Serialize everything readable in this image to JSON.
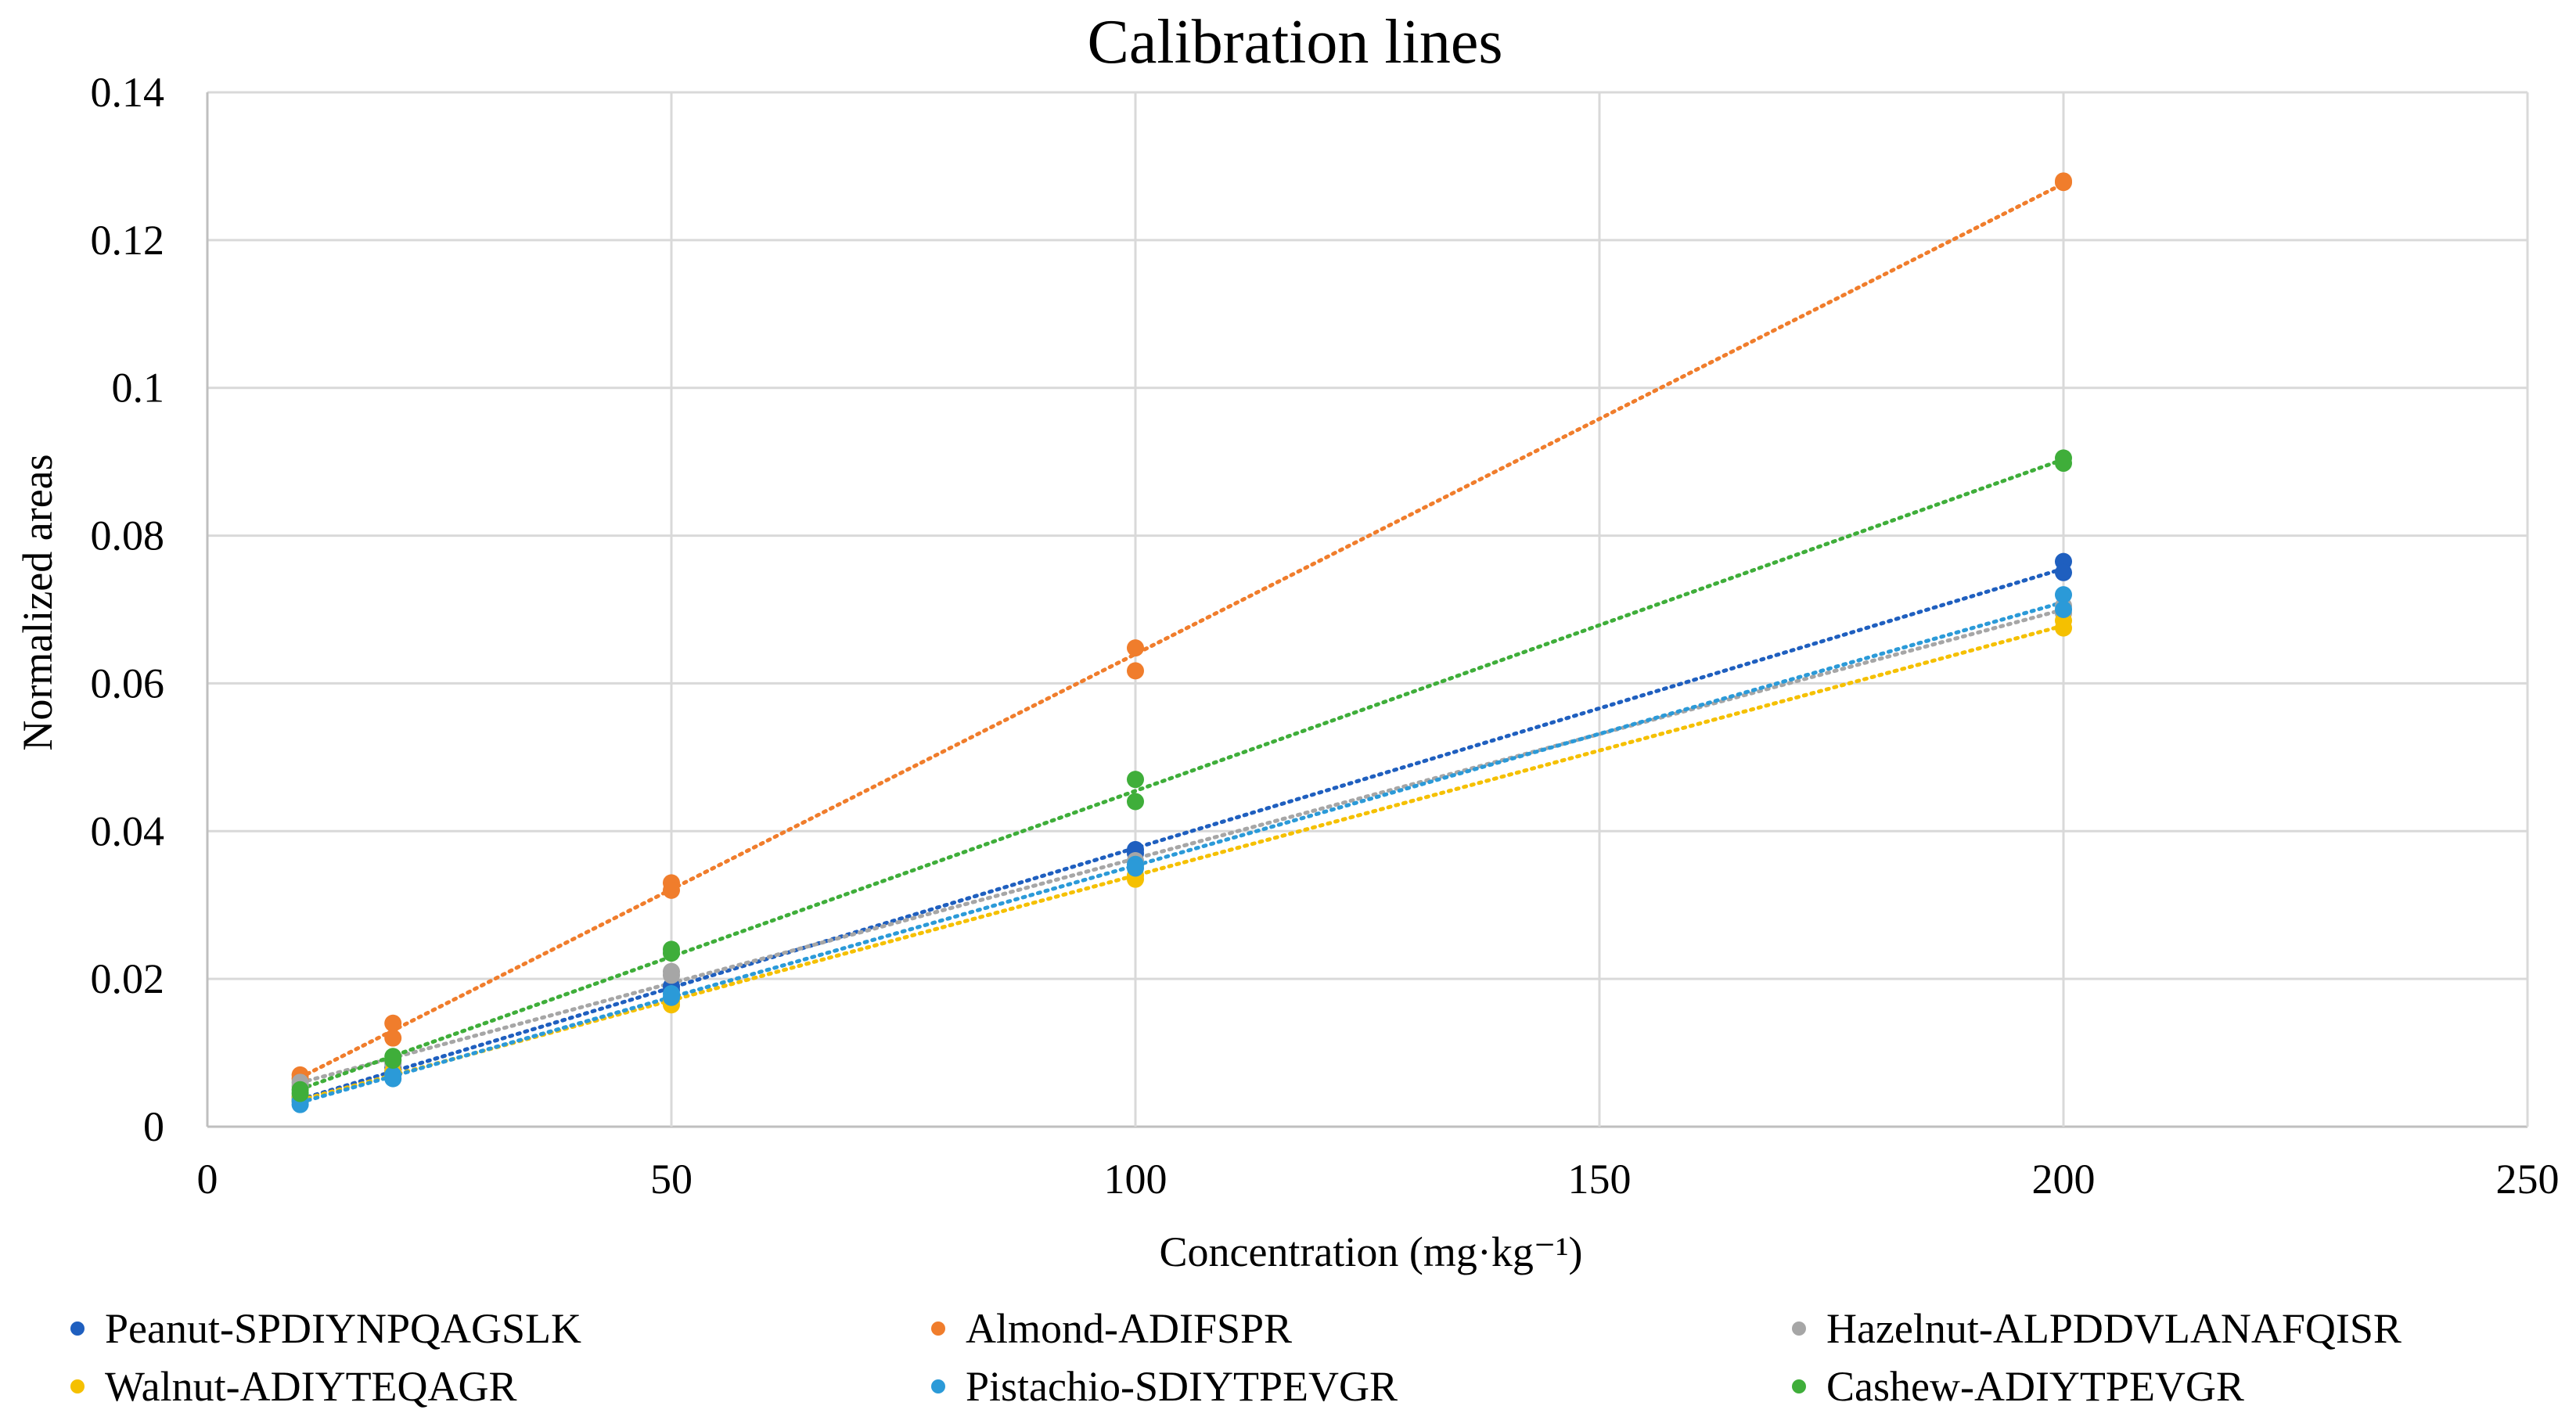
{
  "chart_data": {
    "type": "scatter",
    "title": "Calibration lines",
    "xlabel": "Concentration (mg·kg⁻¹)",
    "ylabel": "Normalized areas",
    "xlim": [
      0,
      250
    ],
    "ylim": [
      0,
      0.14
    ],
    "xticks": [
      0,
      50,
      100,
      150,
      200,
      250
    ],
    "xtick_labels": [
      "0",
      "50",
      "100",
      "150",
      "200",
      "250"
    ],
    "yticks": [
      0,
      0.02,
      0.04,
      0.06,
      0.08,
      0.1,
      0.12,
      0.14
    ],
    "ytick_labels": [
      "0",
      "0.02",
      "0.04",
      "0.06",
      "0.08",
      "0.1",
      "0.12",
      "0.14"
    ],
    "grid": true,
    "legend_position": "bottom",
    "trendline": "linear, dotted",
    "series": [
      {
        "name": "Peanut-SPDIYNPQAGSLK",
        "color": "#1f5fbf",
        "points": [
          [
            10,
            0.0035
          ],
          [
            10,
            0.004
          ],
          [
            20,
            0.0075
          ],
          [
            20,
            0.008
          ],
          [
            50,
            0.019
          ],
          [
            50,
            0.0185
          ],
          [
            100,
            0.0375
          ],
          [
            100,
            0.037
          ],
          [
            200,
            0.0765
          ],
          [
            200,
            0.075
          ]
        ]
      },
      {
        "name": "Almond-ADIFSPR",
        "color": "#f07d2c",
        "points": [
          [
            10,
            0.007
          ],
          [
            10,
            0.0065
          ],
          [
            20,
            0.014
          ],
          [
            20,
            0.012
          ],
          [
            50,
            0.033
          ],
          [
            50,
            0.032
          ],
          [
            100,
            0.0648
          ],
          [
            100,
            0.0617
          ],
          [
            200,
            0.128
          ],
          [
            200,
            0.1278
          ]
        ]
      },
      {
        "name": "Hazelnut-ALPDDVLANAFQISR",
        "color": "#a6a6a6",
        "points": [
          [
            10,
            0.006
          ],
          [
            10,
            0.0055
          ],
          [
            20,
            0.009
          ],
          [
            20,
            0.0085
          ],
          [
            50,
            0.021
          ],
          [
            50,
            0.0205
          ],
          [
            100,
            0.0355
          ],
          [
            100,
            0.036
          ],
          [
            200,
            0.0695
          ],
          [
            200,
            0.0705
          ]
        ]
      },
      {
        "name": "Walnut-ADIYTEQAGR",
        "color": "#f5c000",
        "points": [
          [
            10,
            0.004
          ],
          [
            10,
            0.0035
          ],
          [
            20,
            0.0075
          ],
          [
            20,
            0.007
          ],
          [
            50,
            0.0165
          ],
          [
            50,
            0.017
          ],
          [
            100,
            0.0335
          ],
          [
            100,
            0.034
          ],
          [
            200,
            0.0675
          ],
          [
            200,
            0.0685
          ]
        ]
      },
      {
        "name": "Pistachio-SDIYTPEVGR",
        "color": "#2b9ad8",
        "points": [
          [
            10,
            0.003
          ],
          [
            10,
            0.0035
          ],
          [
            20,
            0.0065
          ],
          [
            20,
            0.007
          ],
          [
            50,
            0.0175
          ],
          [
            50,
            0.018
          ],
          [
            100,
            0.0355
          ],
          [
            100,
            0.035
          ],
          [
            200,
            0.072
          ],
          [
            200,
            0.07
          ]
        ]
      },
      {
        "name": "Cashew-ADIYTPEVGR",
        "color": "#3fae3a",
        "points": [
          [
            10,
            0.0045
          ],
          [
            10,
            0.005
          ],
          [
            20,
            0.0095
          ],
          [
            20,
            0.009
          ],
          [
            50,
            0.024
          ],
          [
            50,
            0.0235
          ],
          [
            100,
            0.047
          ],
          [
            100,
            0.044
          ],
          [
            200,
            0.0905
          ],
          [
            200,
            0.0898
          ]
        ]
      }
    ]
  }
}
